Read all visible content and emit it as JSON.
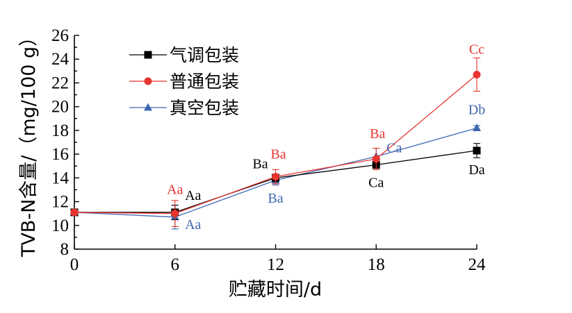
{
  "chart_data": {
    "type": "line",
    "xlabel": "贮藏时间/d",
    "ylabel": "TVB-N含量/（mg/100 g）",
    "x": [
      0,
      6,
      12,
      18,
      24
    ],
    "xlim": [
      0,
      24
    ],
    "ylim": [
      8,
      26
    ],
    "xticks": [
      "0",
      "6",
      "12",
      "18",
      "24"
    ],
    "yticks": [
      "8",
      "10",
      "12",
      "14",
      "16",
      "18",
      "20",
      "22",
      "24",
      "26"
    ],
    "grid": false,
    "legend_position": "top-left",
    "series": [
      {
        "name": "气调包装",
        "color": "#000000",
        "marker": "square",
        "values": [
          11.1,
          11.1,
          14.0,
          15.1,
          16.3
        ],
        "errors": [
          0.2,
          0.6,
          0.3,
          0.4,
          0.6
        ],
        "labels": [
          "",
          "Aa",
          "Ba",
          "Ca",
          "Da"
        ]
      },
      {
        "name": "普通包装",
        "color": "#e8342f",
        "marker": "circle",
        "values": [
          11.1,
          11.0,
          14.1,
          15.6,
          22.7
        ],
        "errors": [
          0.2,
          1.1,
          0.6,
          0.9,
          1.4
        ],
        "labels": [
          "",
          "Aa",
          "Ba",
          "Ba",
          "Cc"
        ]
      },
      {
        "name": "真空包装",
        "color": "#3e67b1",
        "marker": "triangle",
        "values": [
          11.1,
          10.7,
          13.8,
          15.8,
          18.2
        ],
        "errors": [
          0.2,
          1.0,
          0.4,
          0.7,
          0.2
        ],
        "labels": [
          "",
          "Aa",
          "Ba",
          "Ca",
          "Db"
        ]
      }
    ]
  }
}
